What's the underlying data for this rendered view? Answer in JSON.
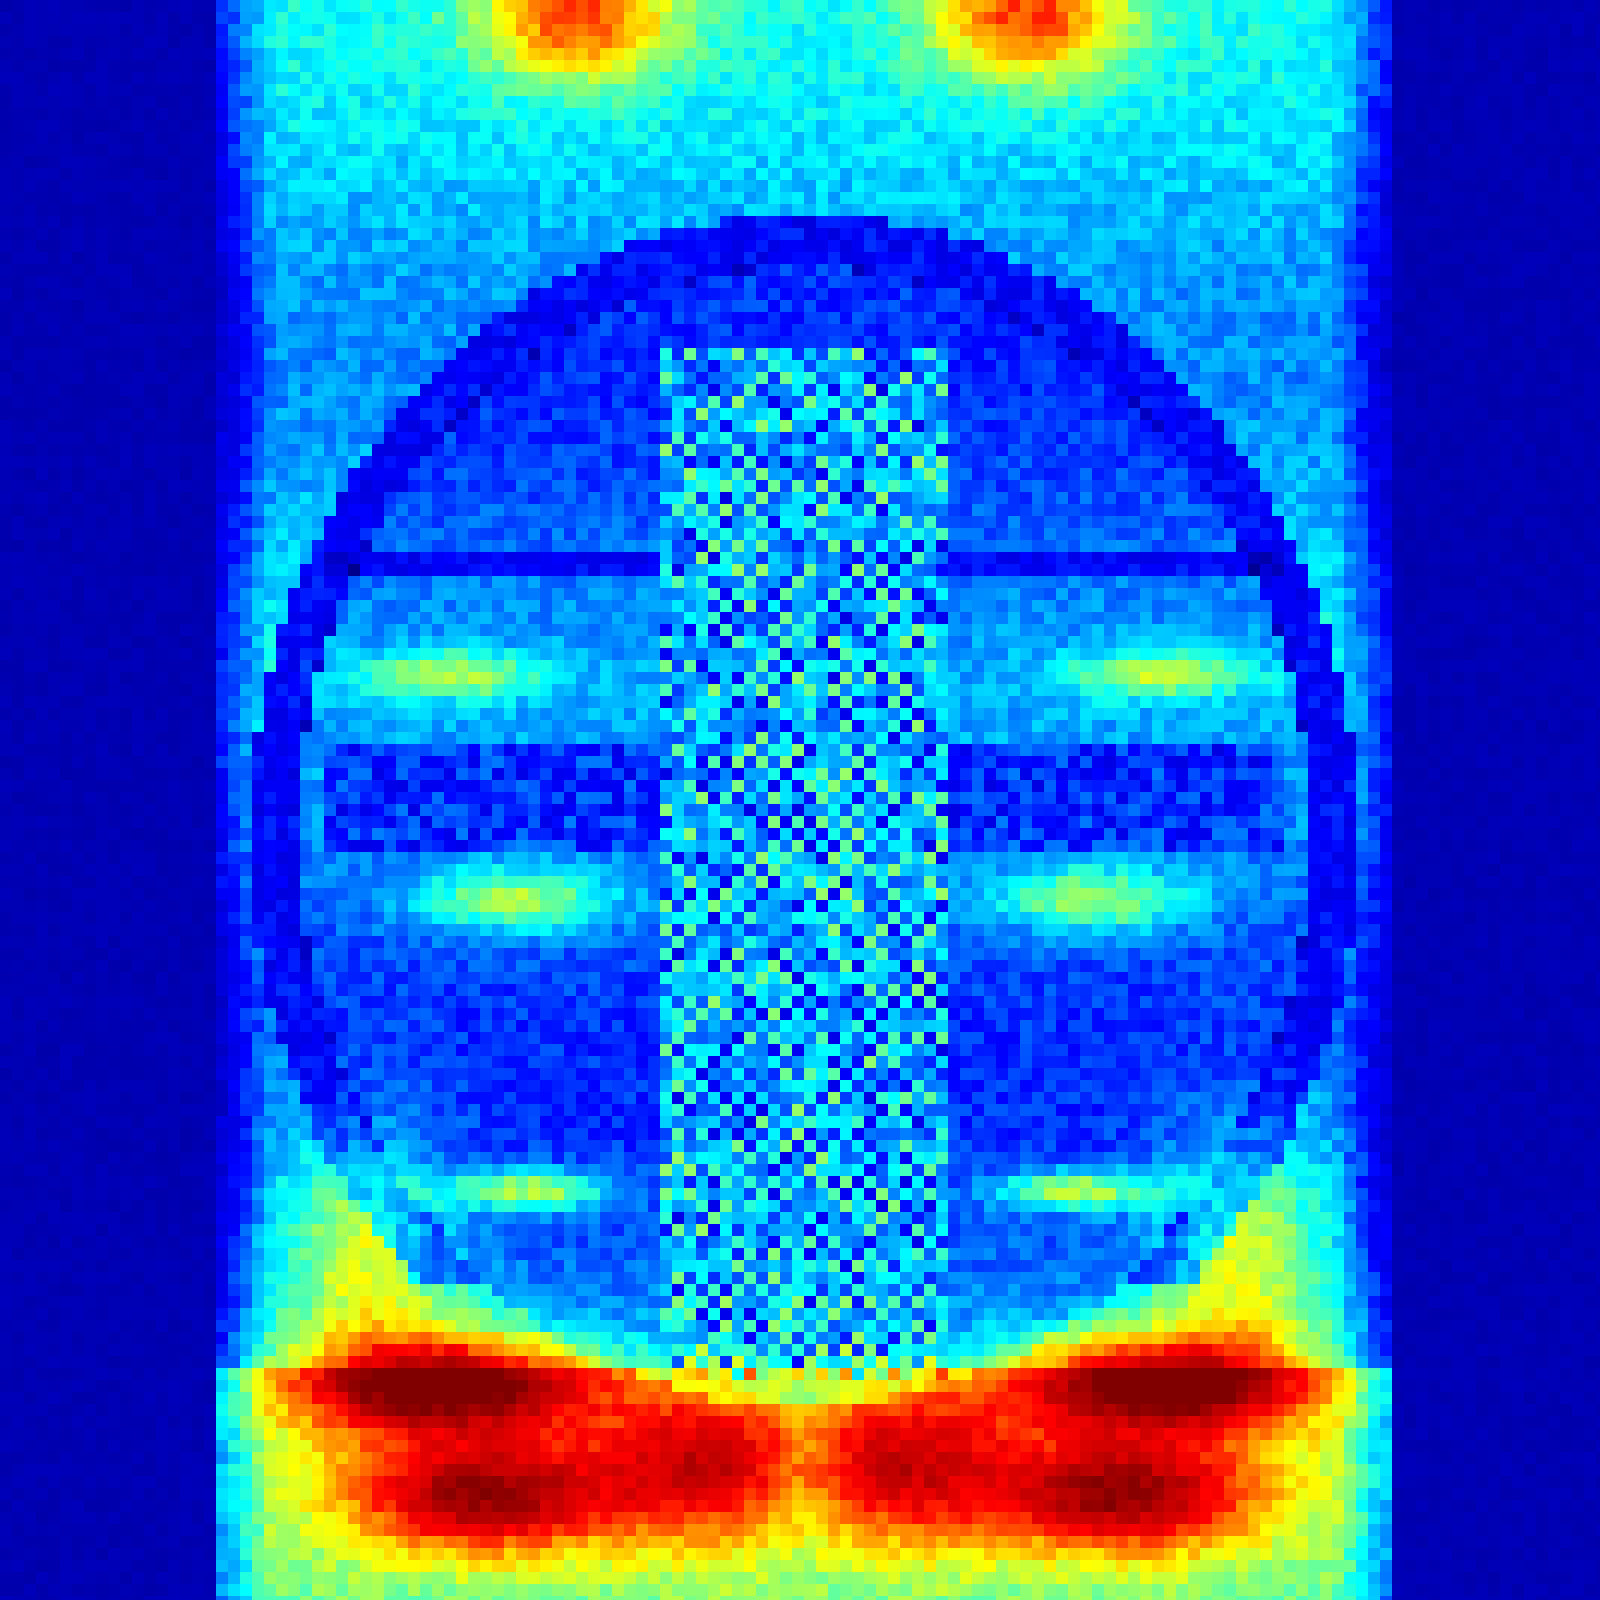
{
  "figure": {
    "kind": "false-color heatmap",
    "colormap": "jet",
    "colormap_stops": [
      "#00008f",
      "#0000ff",
      "#00ffff",
      "#ffff00",
      "#ff0000",
      "#800000"
    ],
    "background_color": "#00008b"
  }
}
